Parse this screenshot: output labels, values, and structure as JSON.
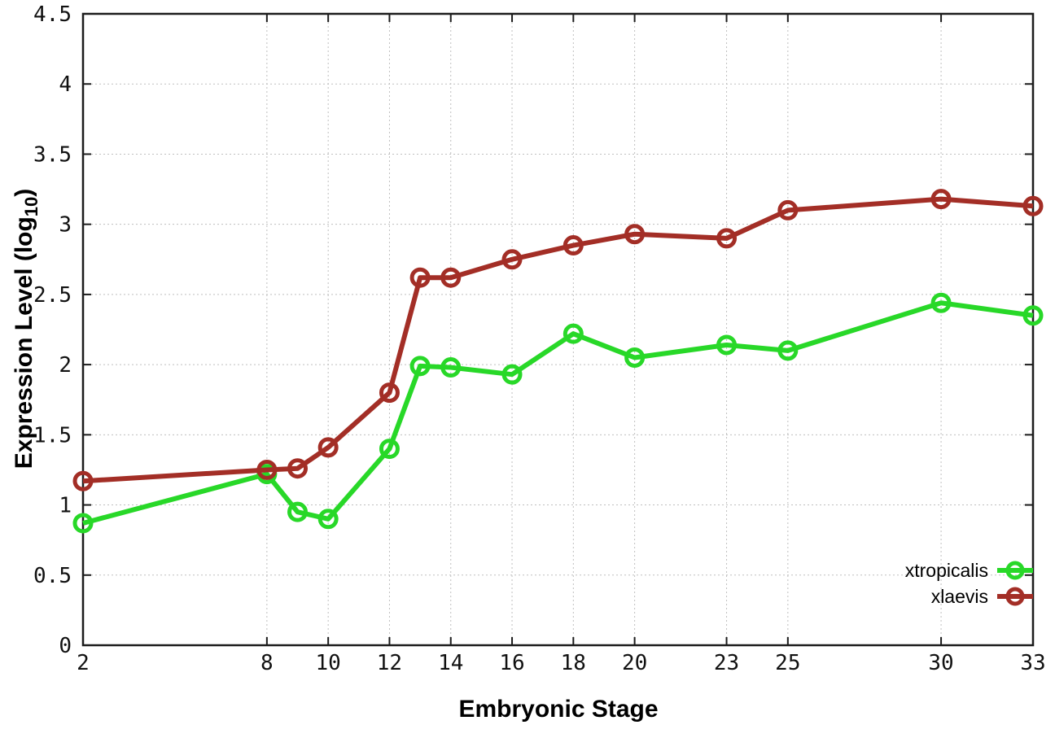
{
  "chart_data": {
    "type": "line",
    "title": "",
    "xlabel": "Embryonic Stage",
    "ylabel": "Expression Level (log10)",
    "ylabel_parts": {
      "prefix": "Expression Level (log",
      "subscript": "10",
      "suffix": ")"
    },
    "xlim": [
      2,
      33
    ],
    "ylim": [
      0,
      4.5
    ],
    "grid": true,
    "legend_position": "bottom-right",
    "marker": "open-circle",
    "line_width": 6,
    "x": [
      2,
      8,
      9,
      10,
      12,
      13,
      14,
      16,
      18,
      20,
      23,
      25,
      30,
      33
    ],
    "xtick_values": [
      2,
      8,
      10,
      12,
      14,
      16,
      18,
      20,
      23,
      25,
      30,
      33
    ],
    "xtick_labels": [
      "2",
      "8",
      "10",
      "12",
      "14",
      "16",
      "18",
      "20",
      "23",
      "25",
      "30",
      "33"
    ],
    "ytick_values": [
      0,
      0.5,
      1,
      1.5,
      2,
      2.5,
      3,
      3.5,
      4,
      4.5
    ],
    "ytick_labels": [
      "0",
      "0.5",
      "1",
      "1.5",
      "2",
      "2.5",
      "3",
      "3.5",
      "4",
      "4.5"
    ],
    "series": [
      {
        "name": "xtropicalis",
        "color": "#28d828",
        "values": [
          0.87,
          1.22,
          0.95,
          0.9,
          1.4,
          1.99,
          1.98,
          1.93,
          2.22,
          2.05,
          2.14,
          2.1,
          2.44,
          2.35
        ]
      },
      {
        "name": "xlaevis",
        "color": "#a32e26",
        "values": [
          1.17,
          1.25,
          1.26,
          1.41,
          1.8,
          2.62,
          2.62,
          2.75,
          2.85,
          2.93,
          2.9,
          3.1,
          3.18,
          3.13
        ]
      }
    ]
  }
}
